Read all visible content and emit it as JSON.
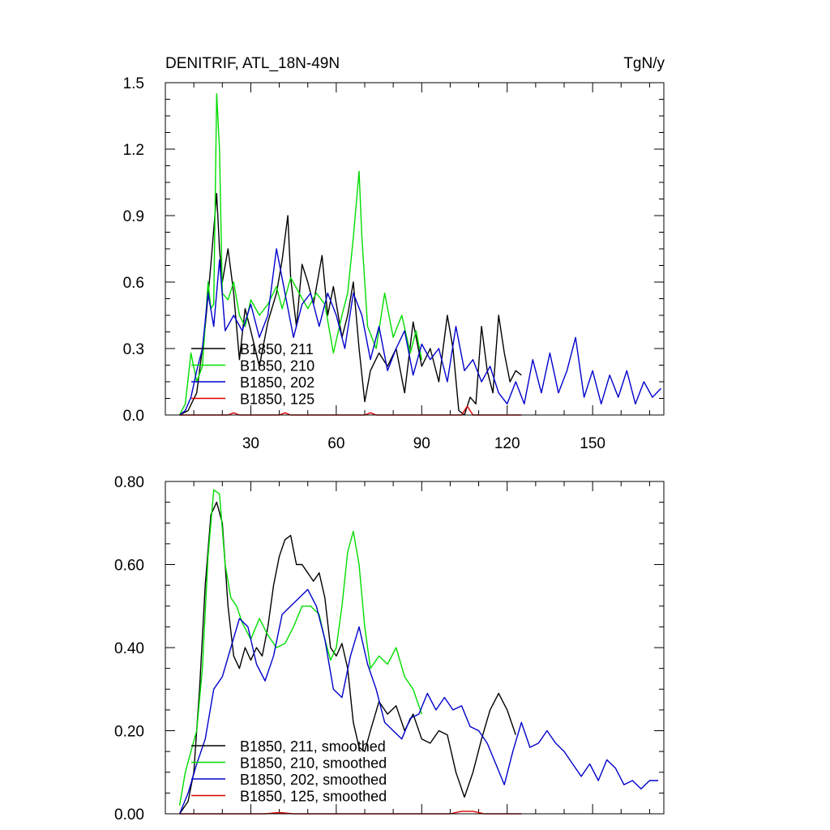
{
  "chart_data": [
    {
      "type": "line",
      "title": "DENITRIF, ATL_18N-49N",
      "units": "TgN/y",
      "xlim": [
        0,
        175
      ],
      "ylim": [
        0,
        1.5
      ],
      "xticks": [
        30,
        60,
        90,
        120,
        150
      ],
      "xtick_labels": [
        "30",
        "60",
        "90",
        "120",
        "150"
      ],
      "yticks": [
        0.0,
        0.3,
        0.6,
        0.9,
        1.2,
        1.5
      ],
      "ytick_labels": [
        "0.0",
        "0.3",
        "0.6",
        "0.9",
        "1.2",
        "1.5"
      ],
      "legend_position": "lower-left",
      "series": [
        {
          "name": "B1850, 211",
          "color": "#000000",
          "x": [
            5,
            8,
            11,
            14,
            16,
            18,
            19,
            20,
            22,
            24,
            26,
            28,
            30,
            33,
            36,
            39,
            41,
            43,
            44,
            46,
            48,
            50,
            52,
            55,
            57,
            59,
            62,
            64,
            66,
            68,
            70,
            72,
            75,
            78,
            81,
            84,
            87,
            90,
            93,
            96,
            99,
            101,
            103,
            105,
            107,
            109,
            111,
            113,
            115,
            117,
            119,
            121,
            123,
            125
          ],
          "y": [
            0.0,
            0.02,
            0.1,
            0.4,
            0.68,
            1.0,
            0.75,
            0.6,
            0.75,
            0.55,
            0.25,
            0.48,
            0.38,
            0.22,
            0.42,
            0.55,
            0.7,
            0.9,
            0.62,
            0.4,
            0.68,
            0.6,
            0.5,
            0.72,
            0.45,
            0.58,
            0.35,
            0.45,
            0.6,
            0.3,
            0.06,
            0.2,
            0.28,
            0.22,
            0.3,
            0.1,
            0.42,
            0.22,
            0.3,
            0.15,
            0.45,
            0.3,
            0.02,
            0.0,
            0.08,
            0.05,
            0.4,
            0.2,
            0.1,
            0.45,
            0.28,
            0.15,
            0.2,
            0.18
          ]
        },
        {
          "name": "B1850, 210",
          "color": "#00dd00",
          "x": [
            5,
            7,
            9,
            11,
            13,
            15,
            16,
            17,
            18,
            19,
            20,
            22,
            24,
            26,
            28,
            30,
            33,
            36,
            39,
            41,
            44,
            47,
            50,
            53,
            56,
            59,
            62,
            64,
            66,
            68,
            69,
            71,
            74,
            77,
            80,
            83,
            86,
            88,
            90
          ],
          "y": [
            0.0,
            0.05,
            0.28,
            0.15,
            0.22,
            0.6,
            0.48,
            0.5,
            1.45,
            1.2,
            0.55,
            0.52,
            0.6,
            0.45,
            0.4,
            0.52,
            0.45,
            0.5,
            0.58,
            0.48,
            0.62,
            0.55,
            0.48,
            0.55,
            0.5,
            0.28,
            0.45,
            0.55,
            0.8,
            1.1,
            0.8,
            0.4,
            0.3,
            0.55,
            0.35,
            0.45,
            0.28,
            0.38,
            0.25
          ]
        },
        {
          "name": "B1850, 202",
          "color": "#0000cc",
          "x": [
            5,
            7,
            9,
            11,
            13,
            15,
            17,
            19,
            21,
            24,
            27,
            30,
            33,
            36,
            39,
            42,
            45,
            48,
            51,
            54,
            57,
            60,
            63,
            66,
            69,
            72,
            75,
            78,
            81,
            84,
            87,
            90,
            93,
            96,
            99,
            102,
            105,
            108,
            111,
            114,
            117,
            120,
            123,
            126,
            129,
            132,
            135,
            138,
            141,
            144,
            147,
            150,
            153,
            156,
            159,
            162,
            165,
            168,
            171,
            174
          ],
          "y": [
            0.0,
            0.02,
            0.08,
            0.2,
            0.3,
            0.55,
            0.4,
            0.7,
            0.38,
            0.45,
            0.38,
            0.5,
            0.35,
            0.45,
            0.75,
            0.55,
            0.35,
            0.5,
            0.55,
            0.4,
            0.55,
            0.45,
            0.3,
            0.55,
            0.45,
            0.25,
            0.4,
            0.2,
            0.3,
            0.38,
            0.18,
            0.32,
            0.25,
            0.3,
            0.15,
            0.4,
            0.2,
            0.25,
            0.15,
            0.22,
            0.1,
            0.05,
            0.15,
            0.05,
            0.25,
            0.1,
            0.28,
            0.1,
            0.2,
            0.35,
            0.08,
            0.2,
            0.05,
            0.18,
            0.08,
            0.2,
            0.05,
            0.15,
            0.08,
            0.12
          ]
        },
        {
          "name": "B1850, 125",
          "color": "#dd0000",
          "x": [
            5,
            15,
            22,
            24,
            26,
            40,
            42,
            44,
            60,
            70,
            72,
            74,
            100,
            104,
            106,
            108,
            112,
            120,
            125
          ],
          "y": [
            0.0,
            0.0,
            0.0,
            0.01,
            0.0,
            0.0,
            0.01,
            0.0,
            0.0,
            0.0,
            0.01,
            0.0,
            0.0,
            0.0,
            0.04,
            0.0,
            0.0,
            0.0,
            0.0
          ]
        }
      ]
    },
    {
      "type": "line",
      "xlim": [
        0,
        175
      ],
      "ylim": [
        0,
        0.8
      ],
      "xticks": [
        30,
        60,
        90,
        120,
        150
      ],
      "yticks": [
        0.0,
        0.2,
        0.4,
        0.6,
        0.8
      ],
      "ytick_labels": [
        "0.00",
        "0.20",
        "0.40",
        "0.60",
        "0.80"
      ],
      "legend_position": "lower-left",
      "series": [
        {
          "name": "B1850, 211, smoothed",
          "color": "#000000",
          "x": [
            5,
            8,
            10,
            12,
            14,
            16,
            18,
            20,
            22,
            24,
            26,
            28,
            30,
            32,
            34,
            36,
            38,
            40,
            42,
            44,
            46,
            48,
            50,
            52,
            54,
            56,
            58,
            60,
            62,
            64,
            66,
            68,
            70,
            72,
            75,
            78,
            81,
            84,
            87,
            90,
            93,
            96,
            99,
            102,
            105,
            108,
            111,
            114,
            117,
            120,
            123
          ],
          "y": [
            0.0,
            0.03,
            0.1,
            0.3,
            0.55,
            0.72,
            0.75,
            0.7,
            0.5,
            0.38,
            0.35,
            0.4,
            0.37,
            0.4,
            0.38,
            0.45,
            0.55,
            0.62,
            0.66,
            0.67,
            0.6,
            0.6,
            0.58,
            0.56,
            0.58,
            0.52,
            0.4,
            0.38,
            0.41,
            0.35,
            0.22,
            0.16,
            0.15,
            0.2,
            0.27,
            0.24,
            0.26,
            0.2,
            0.24,
            0.18,
            0.17,
            0.2,
            0.19,
            0.1,
            0.04,
            0.1,
            0.18,
            0.25,
            0.29,
            0.25,
            0.19
          ]
        },
        {
          "name": "B1850, 210, smoothed",
          "color": "#00dd00",
          "x": [
            5,
            7,
            9,
            11,
            13,
            15,
            17,
            19,
            21,
            23,
            25,
            27,
            30,
            33,
            36,
            39,
            42,
            45,
            48,
            51,
            54,
            56,
            58,
            60,
            62,
            64,
            66,
            68,
            70,
            72,
            75,
            78,
            81,
            84,
            87,
            90
          ],
          "y": [
            0.02,
            0.1,
            0.15,
            0.2,
            0.35,
            0.62,
            0.78,
            0.77,
            0.6,
            0.52,
            0.5,
            0.46,
            0.42,
            0.47,
            0.43,
            0.4,
            0.41,
            0.45,
            0.5,
            0.5,
            0.48,
            0.42,
            0.37,
            0.4,
            0.5,
            0.63,
            0.68,
            0.6,
            0.45,
            0.35,
            0.38,
            0.36,
            0.4,
            0.33,
            0.3,
            0.24
          ]
        },
        {
          "name": "B1850, 202, smoothed",
          "color": "#0000cc",
          "x": [
            5,
            8,
            11,
            14,
            17,
            20,
            23,
            26,
            29,
            32,
            35,
            38,
            41,
            44,
            47,
            50,
            53,
            56,
            59,
            62,
            65,
            68,
            71,
            74,
            77,
            80,
            83,
            86,
            89,
            92,
            95,
            98,
            101,
            104,
            107,
            110,
            113,
            116,
            119,
            122,
            125,
            128,
            131,
            134,
            137,
            140,
            143,
            146,
            149,
            152,
            155,
            158,
            161,
            164,
            167,
            170,
            173
          ],
          "y": [
            0.0,
            0.05,
            0.12,
            0.18,
            0.3,
            0.33,
            0.4,
            0.47,
            0.45,
            0.36,
            0.32,
            0.38,
            0.48,
            0.5,
            0.52,
            0.54,
            0.5,
            0.42,
            0.3,
            0.28,
            0.38,
            0.45,
            0.36,
            0.3,
            0.22,
            0.2,
            0.18,
            0.23,
            0.24,
            0.29,
            0.25,
            0.28,
            0.25,
            0.26,
            0.21,
            0.2,
            0.17,
            0.12,
            0.07,
            0.15,
            0.22,
            0.16,
            0.17,
            0.2,
            0.17,
            0.15,
            0.12,
            0.09,
            0.12,
            0.08,
            0.13,
            0.11,
            0.07,
            0.08,
            0.06,
            0.08,
            0.08
          ]
        },
        {
          "name": "B1850, 125, smoothed",
          "color": "#dd0000",
          "x": [
            5,
            20,
            35,
            40,
            45,
            70,
            100,
            104,
            108,
            112,
            125
          ],
          "y": [
            0.0,
            0.0,
            0.0,
            0.003,
            0.0,
            0.0,
            0.0,
            0.006,
            0.006,
            0.0,
            0.0
          ]
        }
      ]
    }
  ]
}
